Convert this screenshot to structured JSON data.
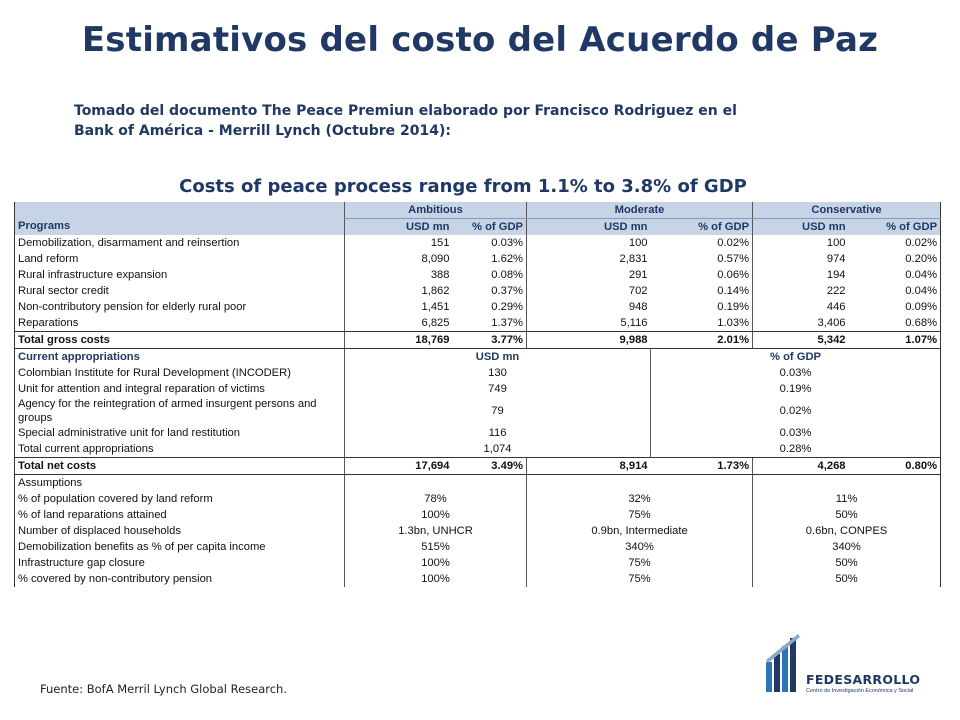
{
  "title": "Estimativos del costo del Acuerdo de Paz",
  "intro": {
    "line1": "Tomado del documento The Peace Premiun elaborado por Francisco Rodriguez en el",
    "line2": "Bank of América - Merrill Lynch (Octubre 2014):"
  },
  "subtitle": "Costs of peace process range from 1.1% to 3.8% of GDP",
  "table": {
    "groups": [
      "Ambitious",
      "Moderate",
      "Conservative"
    ],
    "col_usd": "USD mn",
    "col_pct": "% of GDP",
    "programs_header": "Programs",
    "programs": [
      {
        "label": "Demobilization, disarmament and reinsertion",
        "v": [
          "151",
          "0.03%",
          "100",
          "0.02%",
          "100",
          "0.02%"
        ]
      },
      {
        "label": "Land reform",
        "v": [
          "8,090",
          "1.62%",
          "2,831",
          "0.57%",
          "974",
          "0.20%"
        ]
      },
      {
        "label": "Rural infrastructure expansion",
        "v": [
          "388",
          "0.08%",
          "291",
          "0.06%",
          "194",
          "0.04%"
        ]
      },
      {
        "label": "Rural sector credit",
        "v": [
          "1,862",
          "0.37%",
          "702",
          "0.14%",
          "222",
          "0.04%"
        ]
      },
      {
        "label": "Non-contributory pension for elderly rural poor",
        "v": [
          "1,451",
          "0.29%",
          "948",
          "0.19%",
          "446",
          "0.09%"
        ]
      },
      {
        "label": "Reparations",
        "v": [
          "6,825",
          "1.37%",
          "5,116",
          "1.03%",
          "3,406",
          "0.68%"
        ]
      }
    ],
    "total_gross": {
      "label": "Total gross costs",
      "v": [
        "18,769",
        "3.77%",
        "9,988",
        "2.01%",
        "5,342",
        "1.07%"
      ]
    },
    "appropriations_header": "Current appropriations",
    "app_usd_header": "USD mn",
    "app_pct_header": "% of GDP",
    "appropriations": [
      {
        "label": "Colombian Institute for Rural Development (INCODER)",
        "usd": "130",
        "pct": "0.03%"
      },
      {
        "label": "Unit for attention and integral reparation of victims",
        "usd": "749",
        "pct": "0.19%"
      },
      {
        "label": "Agency for the reintegration of armed insurgent persons and groups",
        "usd": "79",
        "pct": "0.02%"
      },
      {
        "label": "Special administrative unit for land restitution",
        "usd": "116",
        "pct": "0.03%"
      },
      {
        "label": "Total current appropriations",
        "usd": "1,074",
        "pct": "0.28%"
      }
    ],
    "total_net": {
      "label": "Total net costs",
      "v": [
        "17,694",
        "3.49%",
        "8,914",
        "1.73%",
        "4,268",
        "0.80%"
      ]
    },
    "assumptions_header": "Assumptions",
    "assumptions": [
      {
        "label": "% of population covered by land reform",
        "v": [
          "78%",
          "32%",
          "11%"
        ]
      },
      {
        "label": "% of land reparations attained",
        "v": [
          "100%",
          "75%",
          "50%"
        ]
      },
      {
        "label": "Number of displaced households",
        "v": [
          "1.3bn, UNHCR",
          "0.9bn, Intermediate",
          "0.6bn, CONPES"
        ]
      },
      {
        "label": "Demobilization benefits as % of per capita income",
        "v": [
          "515%",
          "340%",
          "340%"
        ]
      },
      {
        "label": "Infrastructure gap closure",
        "v": [
          "100%",
          "75%",
          "50%"
        ]
      },
      {
        "label": "%  covered by non-contributory pension",
        "v": [
          "100%",
          "75%",
          "50%"
        ]
      }
    ]
  },
  "footer": "Fuente: BofA Merril Lynch Global Research.",
  "logo": {
    "brand": "FEDESARROLLO",
    "tagline": "Centro de Investigación Económica y Social",
    "color": "#1f3864",
    "accent": "#2e75b6"
  }
}
